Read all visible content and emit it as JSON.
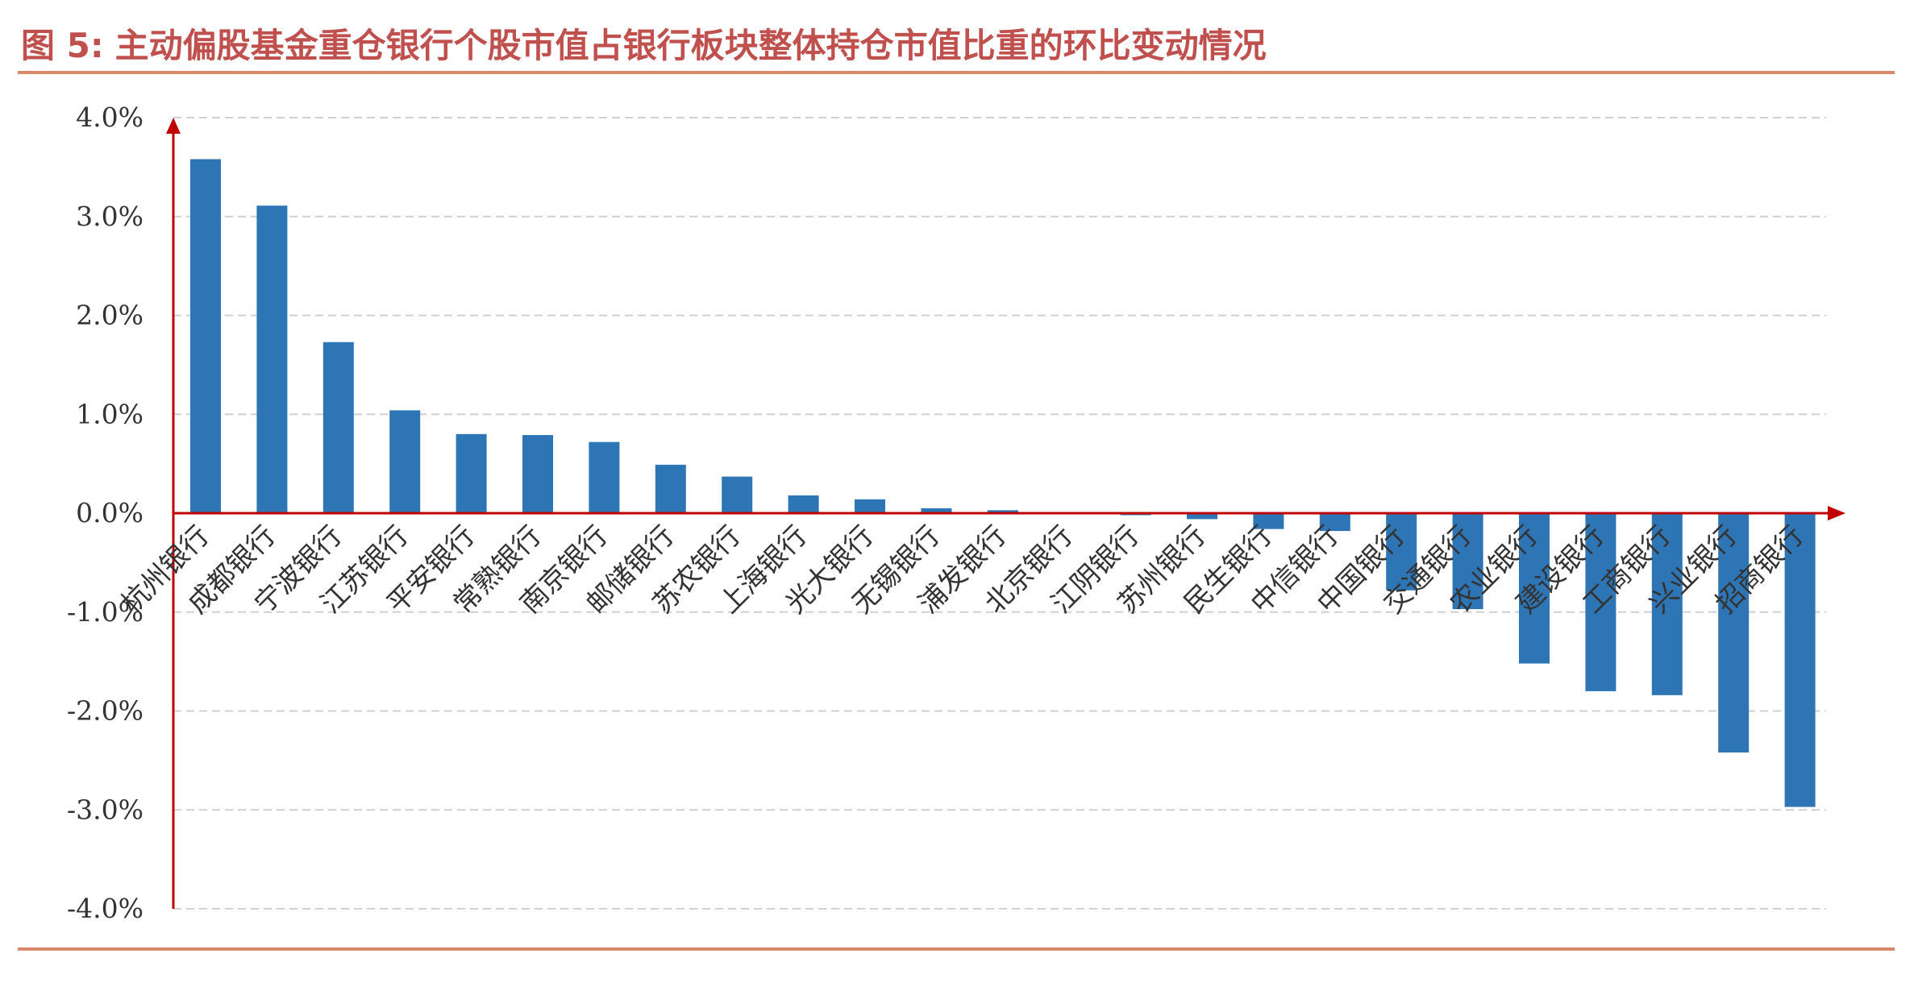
{
  "figure": {
    "label": "图 5:",
    "title": "主动偏股基金重仓银行个股市值占银行板块整体持仓市值比重的环比变动情况"
  },
  "colors": {
    "bar": "#2e75b6",
    "axis": "#c00000",
    "title": "#c0504d",
    "rule": "#d9896b",
    "grid": "#d0d0d0"
  },
  "chart_data": {
    "type": "bar",
    "title": "主动偏股基金重仓银行个股市值占银行板块整体持仓市值比重的环比变动情况",
    "xlabel": "",
    "ylabel": "",
    "ylim": [
      -4.0,
      4.0
    ],
    "yticks": [
      "4.0%",
      "3.0%",
      "2.0%",
      "1.0%",
      "0.0%",
      "-1.0%",
      "-2.0%",
      "-3.0%",
      "-4.0%"
    ],
    "ytick_values": [
      4,
      3,
      2,
      1,
      0,
      -1,
      -2,
      -3,
      -4
    ],
    "grid": true,
    "categories": [
      "杭州银行",
      "成都银行",
      "宁波银行",
      "江苏银行",
      "平安银行",
      "常熟银行",
      "南京银行",
      "邮储银行",
      "苏农银行",
      "上海银行",
      "光大银行",
      "无锡银行",
      "浦发银行",
      "北京银行",
      "江阴银行",
      "苏州银行",
      "民生银行",
      "中信银行",
      "中国银行",
      "交通银行",
      "农业银行",
      "建设银行",
      "工商银行",
      "兴业银行",
      "招商银行"
    ],
    "values": [
      3.58,
      3.11,
      1.73,
      1.04,
      0.8,
      0.79,
      0.72,
      0.49,
      0.37,
      0.18,
      0.14,
      0.05,
      0.03,
      0.01,
      -0.02,
      -0.06,
      -0.16,
      -0.18,
      -0.78,
      -0.97,
      -1.52,
      -1.8,
      -1.84,
      -2.42,
      -2.97
    ]
  }
}
